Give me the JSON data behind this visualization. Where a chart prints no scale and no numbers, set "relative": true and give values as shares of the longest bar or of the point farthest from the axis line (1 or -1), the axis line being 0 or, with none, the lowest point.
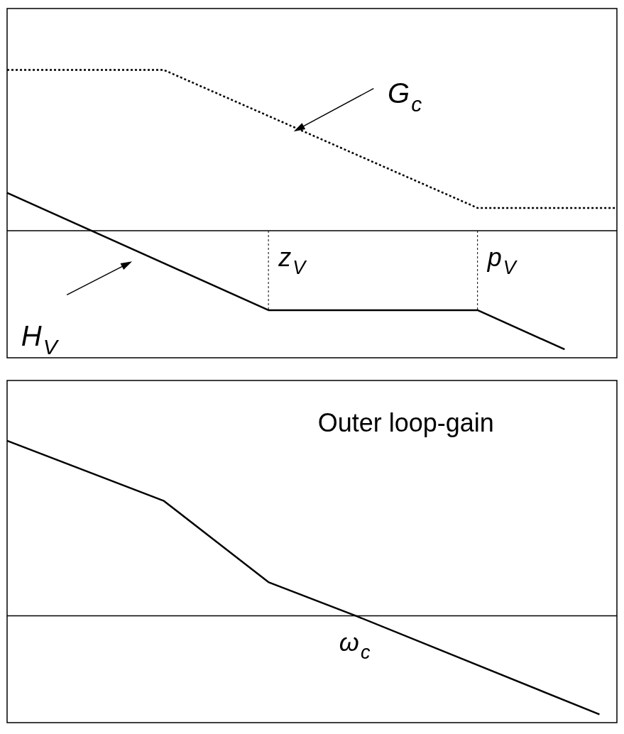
{
  "chart_data": [
    {
      "type": "line",
      "relative": true,
      "tick_labels": false,
      "legend": false,
      "marker": "none",
      "categories": [
        null,
        null,
        null,
        null,
        null,
        null,
        null,
        null,
        null,
        null,
        null,
        null,
        null,
        null,
        null,
        null,
        null,
        null,
        null,
        null,
        null,
        null,
        null,
        null,
        null,
        null,
        null,
        null,
        null,
        null,
        null,
        null,
        null,
        null,
        null,
        null
      ],
      "series": [
        {
          "color": "#000000",
          "line_style": "dotted",
          "values": [
            1,
            null,
            null,
            null,
            null,
            null,
            null,
            null,
            null,
            1,
            null,
            null,
            null,
            null,
            null,
            null,
            null,
            null,
            null,
            null,
            null,
            null,
            null,
            null,
            null,
            null,
            null,
            0.142,
            null,
            null,
            null,
            null,
            null,
            null,
            null,
            0.142
          ]
        },
        {
          "color": "#000000",
          "line_style": "solid",
          "values": [
            0.236,
            null,
            null,
            null,
            null,
            null,
            null,
            null,
            null,
            null,
            null,
            null,
            null,
            null,
            null,
            -0.494,
            null,
            null,
            null,
            null,
            null,
            null,
            null,
            null,
            null,
            null,
            null,
            -0.494,
            null,
            null,
            null,
            null,
            -0.738,
            null,
            null,
            null
          ]
        }
      ],
      "annotations": [
        "G$_{c}$",
        "H$_{V}$",
        "z$_{V}$",
        "p$_{V}$"
      ]
    },
    {
      "type": "line",
      "relative": true,
      "tick_labels": false,
      "legend": false,
      "marker": "none",
      "categories": [
        null,
        null,
        null,
        null,
        null,
        null,
        null,
        null,
        null,
        null,
        null,
        null,
        null,
        null,
        null,
        null,
        null,
        null,
        null,
        null,
        null,
        null,
        null,
        null,
        null,
        null,
        null,
        null,
        null,
        null,
        null,
        null,
        null,
        null,
        null,
        null
      ],
      "series": [
        {
          "color": "#000000",
          "line_style": "solid",
          "values": [
            1,
            null,
            null,
            null,
            null,
            null,
            null,
            null,
            null,
            0.656,
            null,
            null,
            null,
            null,
            null,
            0.192,
            null,
            null,
            null,
            null,
            0,
            null,
            null,
            null,
            null,
            null,
            null,
            null,
            null,
            null,
            null,
            null,
            null,
            null,
            -0.564,
            null
          ]
        }
      ],
      "annotations": [
        "Outer loop-gain",
        "ω$_{c}$"
      ]
    }
  ]
}
